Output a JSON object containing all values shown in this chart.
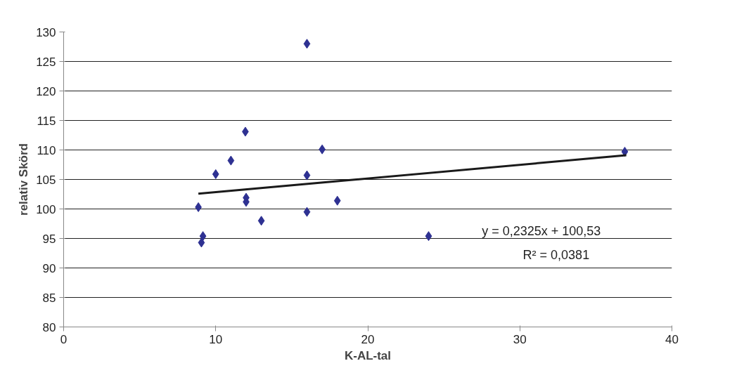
{
  "chart_data": {
    "type": "scatter",
    "xlabel": "K-AL-tal",
    "ylabel": "relativ Skörd",
    "x": [
      8.86,
      9.06,
      9.16,
      10.0,
      11.0,
      11.95,
      12.0,
      12.0,
      13.0,
      16.0,
      16.0,
      16.0,
      17.0,
      18.0,
      24.0,
      36.9
    ],
    "series": [
      {
        "color": "#2e3192",
        "marker": "diamond",
        "values": [
          100.3,
          94.3,
          95.4,
          105.9,
          108.2,
          113.1,
          101.9,
          101.2,
          98.0,
          128.0,
          105.7,
          99.5,
          110.1,
          101.4,
          95.4,
          109.7
        ]
      },
      {
        "type": "line",
        "color": "#1a1a1a",
        "x": [
          8.86,
          37
        ],
        "values": [
          102.6,
          109.1
        ]
      }
    ],
    "annotations": [
      "y = 0,2325x + 100,53",
      "R² = 0,0381"
    ],
    "xlim": [
      0,
      40
    ],
    "xticks": [
      0,
      10,
      20,
      30,
      40
    ],
    "ylim": [
      80,
      130
    ],
    "yticks": [
      80,
      85,
      90,
      95,
      100,
      105,
      110,
      115,
      120,
      125,
      130
    ],
    "grid": "y"
  }
}
